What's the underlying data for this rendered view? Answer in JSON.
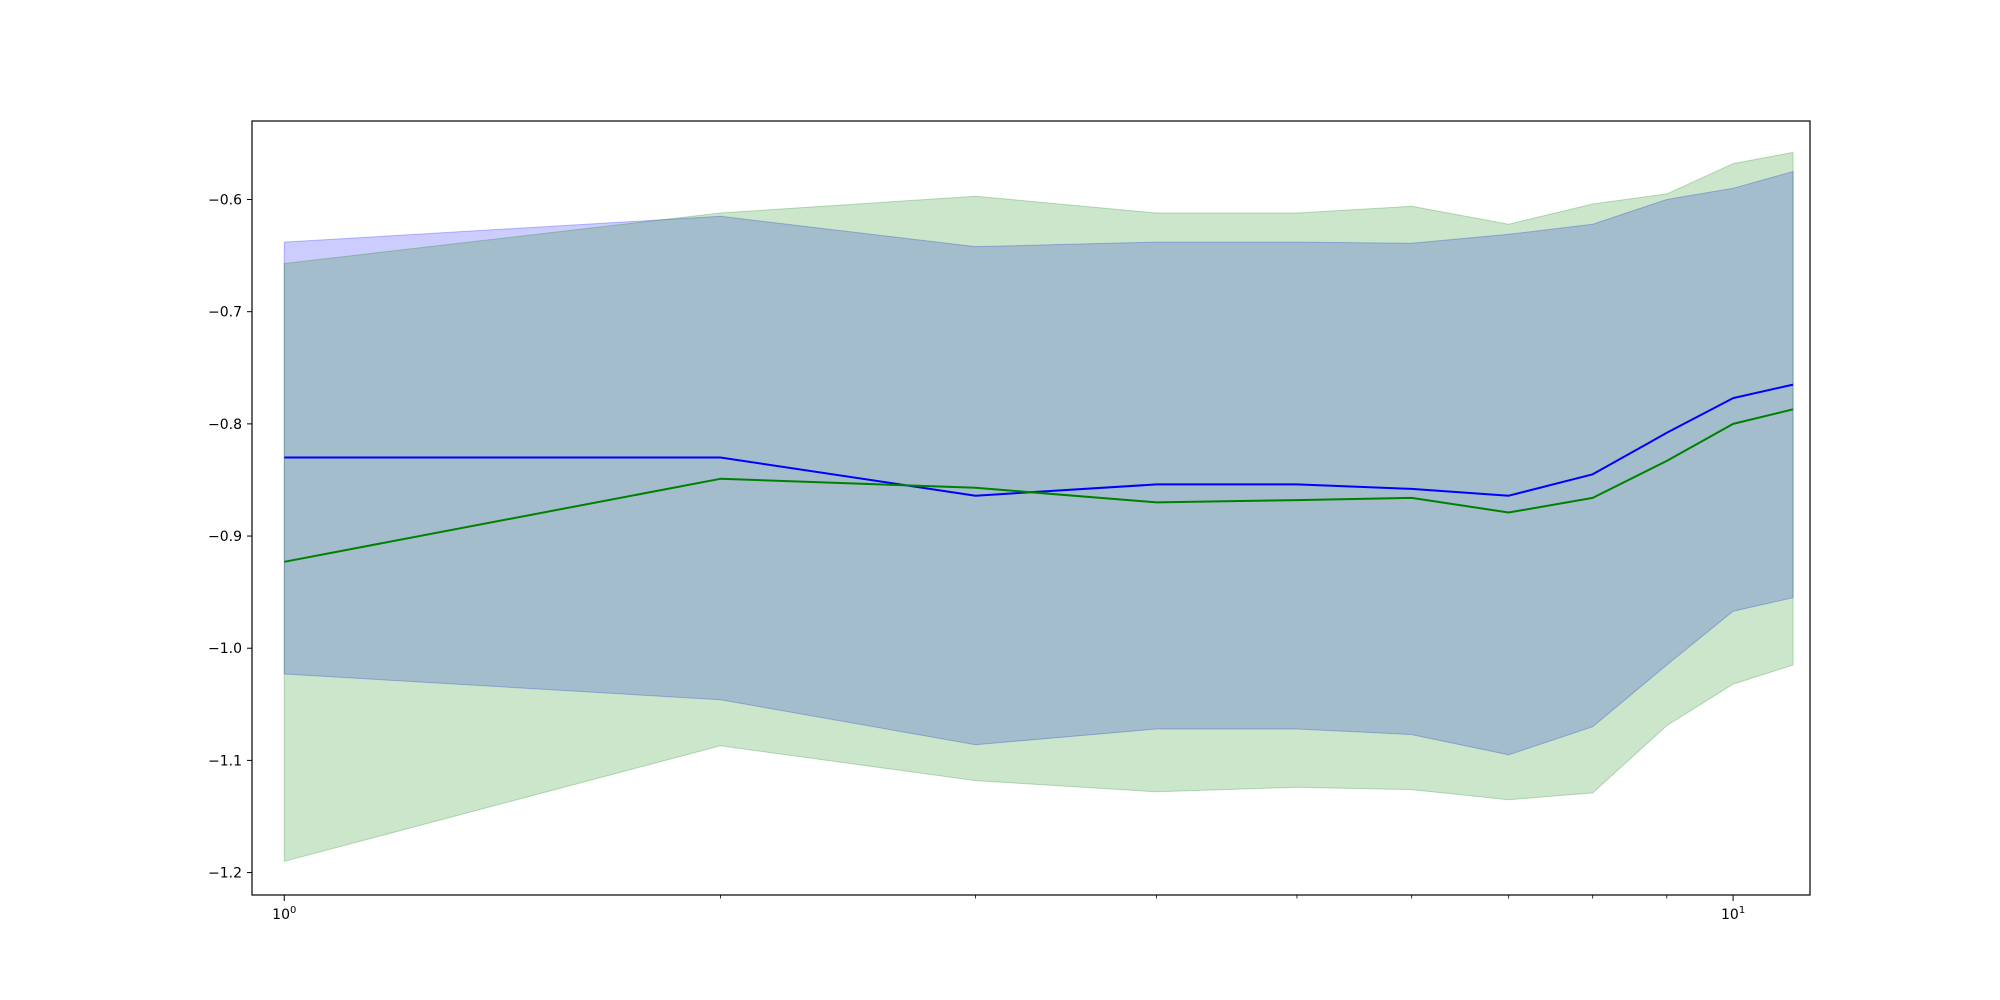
{
  "chart_data": {
    "type": "line",
    "title": "",
    "xlabel": "",
    "ylabel": "",
    "xscale": "log",
    "xlim": [
      0.95,
      11.3
    ],
    "ylim": [
      -1.22,
      -0.53
    ],
    "grid": false,
    "legend": "none",
    "x_ticks": [
      {
        "value": 1,
        "base": "10",
        "exp": "0"
      },
      {
        "value": 10,
        "base": "10",
        "exp": "1"
      }
    ],
    "x_minor_ticks": [
      2,
      3,
      4,
      5,
      6,
      7,
      8,
      9
    ],
    "y_ticks": [
      {
        "value": -0.6,
        "label": "−0.6"
      },
      {
        "value": -0.7,
        "label": "−0.7"
      },
      {
        "value": -0.8,
        "label": "−0.8"
      },
      {
        "value": -0.9,
        "label": "−0.9"
      },
      {
        "value": -1.0,
        "label": "−1.0"
      },
      {
        "value": -1.1,
        "label": "−1.1"
      },
      {
        "value": -1.2,
        "label": "−1.2"
      }
    ],
    "x": [
      1,
      2,
      3,
      4,
      5,
      6,
      7,
      8,
      9,
      10,
      11
    ],
    "series": [
      {
        "color": "#0000ff",
        "band_color": "#0000ff",
        "band_opacity": 0.2,
        "values": [
          -0.83,
          -0.83,
          -0.864,
          -0.854,
          -0.854,
          -0.858,
          -0.864,
          -0.845,
          -0.808,
          -0.777,
          -0.765
        ],
        "lower": [
          -1.023,
          -1.046,
          -1.086,
          -1.072,
          -1.072,
          -1.077,
          -1.095,
          -1.07,
          -1.015,
          -0.967,
          -0.955
        ],
        "upper": [
          -0.638,
          -0.615,
          -0.642,
          -0.638,
          -0.638,
          -0.639,
          -0.631,
          -0.622,
          -0.6,
          -0.59,
          -0.575
        ]
      },
      {
        "color": "#008000",
        "band_color": "#008000",
        "band_opacity": 0.2,
        "values": [
          -0.923,
          -0.849,
          -0.857,
          -0.87,
          -0.868,
          -0.866,
          -0.879,
          -0.866,
          -0.833,
          -0.8,
          -0.787
        ],
        "lower": [
          -1.19,
          -1.087,
          -1.118,
          -1.128,
          -1.124,
          -1.126,
          -1.135,
          -1.129,
          -1.069,
          -1.032,
          -1.015
        ],
        "upper": [
          -0.657,
          -0.612,
          -0.597,
          -0.612,
          -0.612,
          -0.606,
          -0.622,
          -0.604,
          -0.595,
          -0.568,
          -0.558
        ]
      }
    ]
  }
}
